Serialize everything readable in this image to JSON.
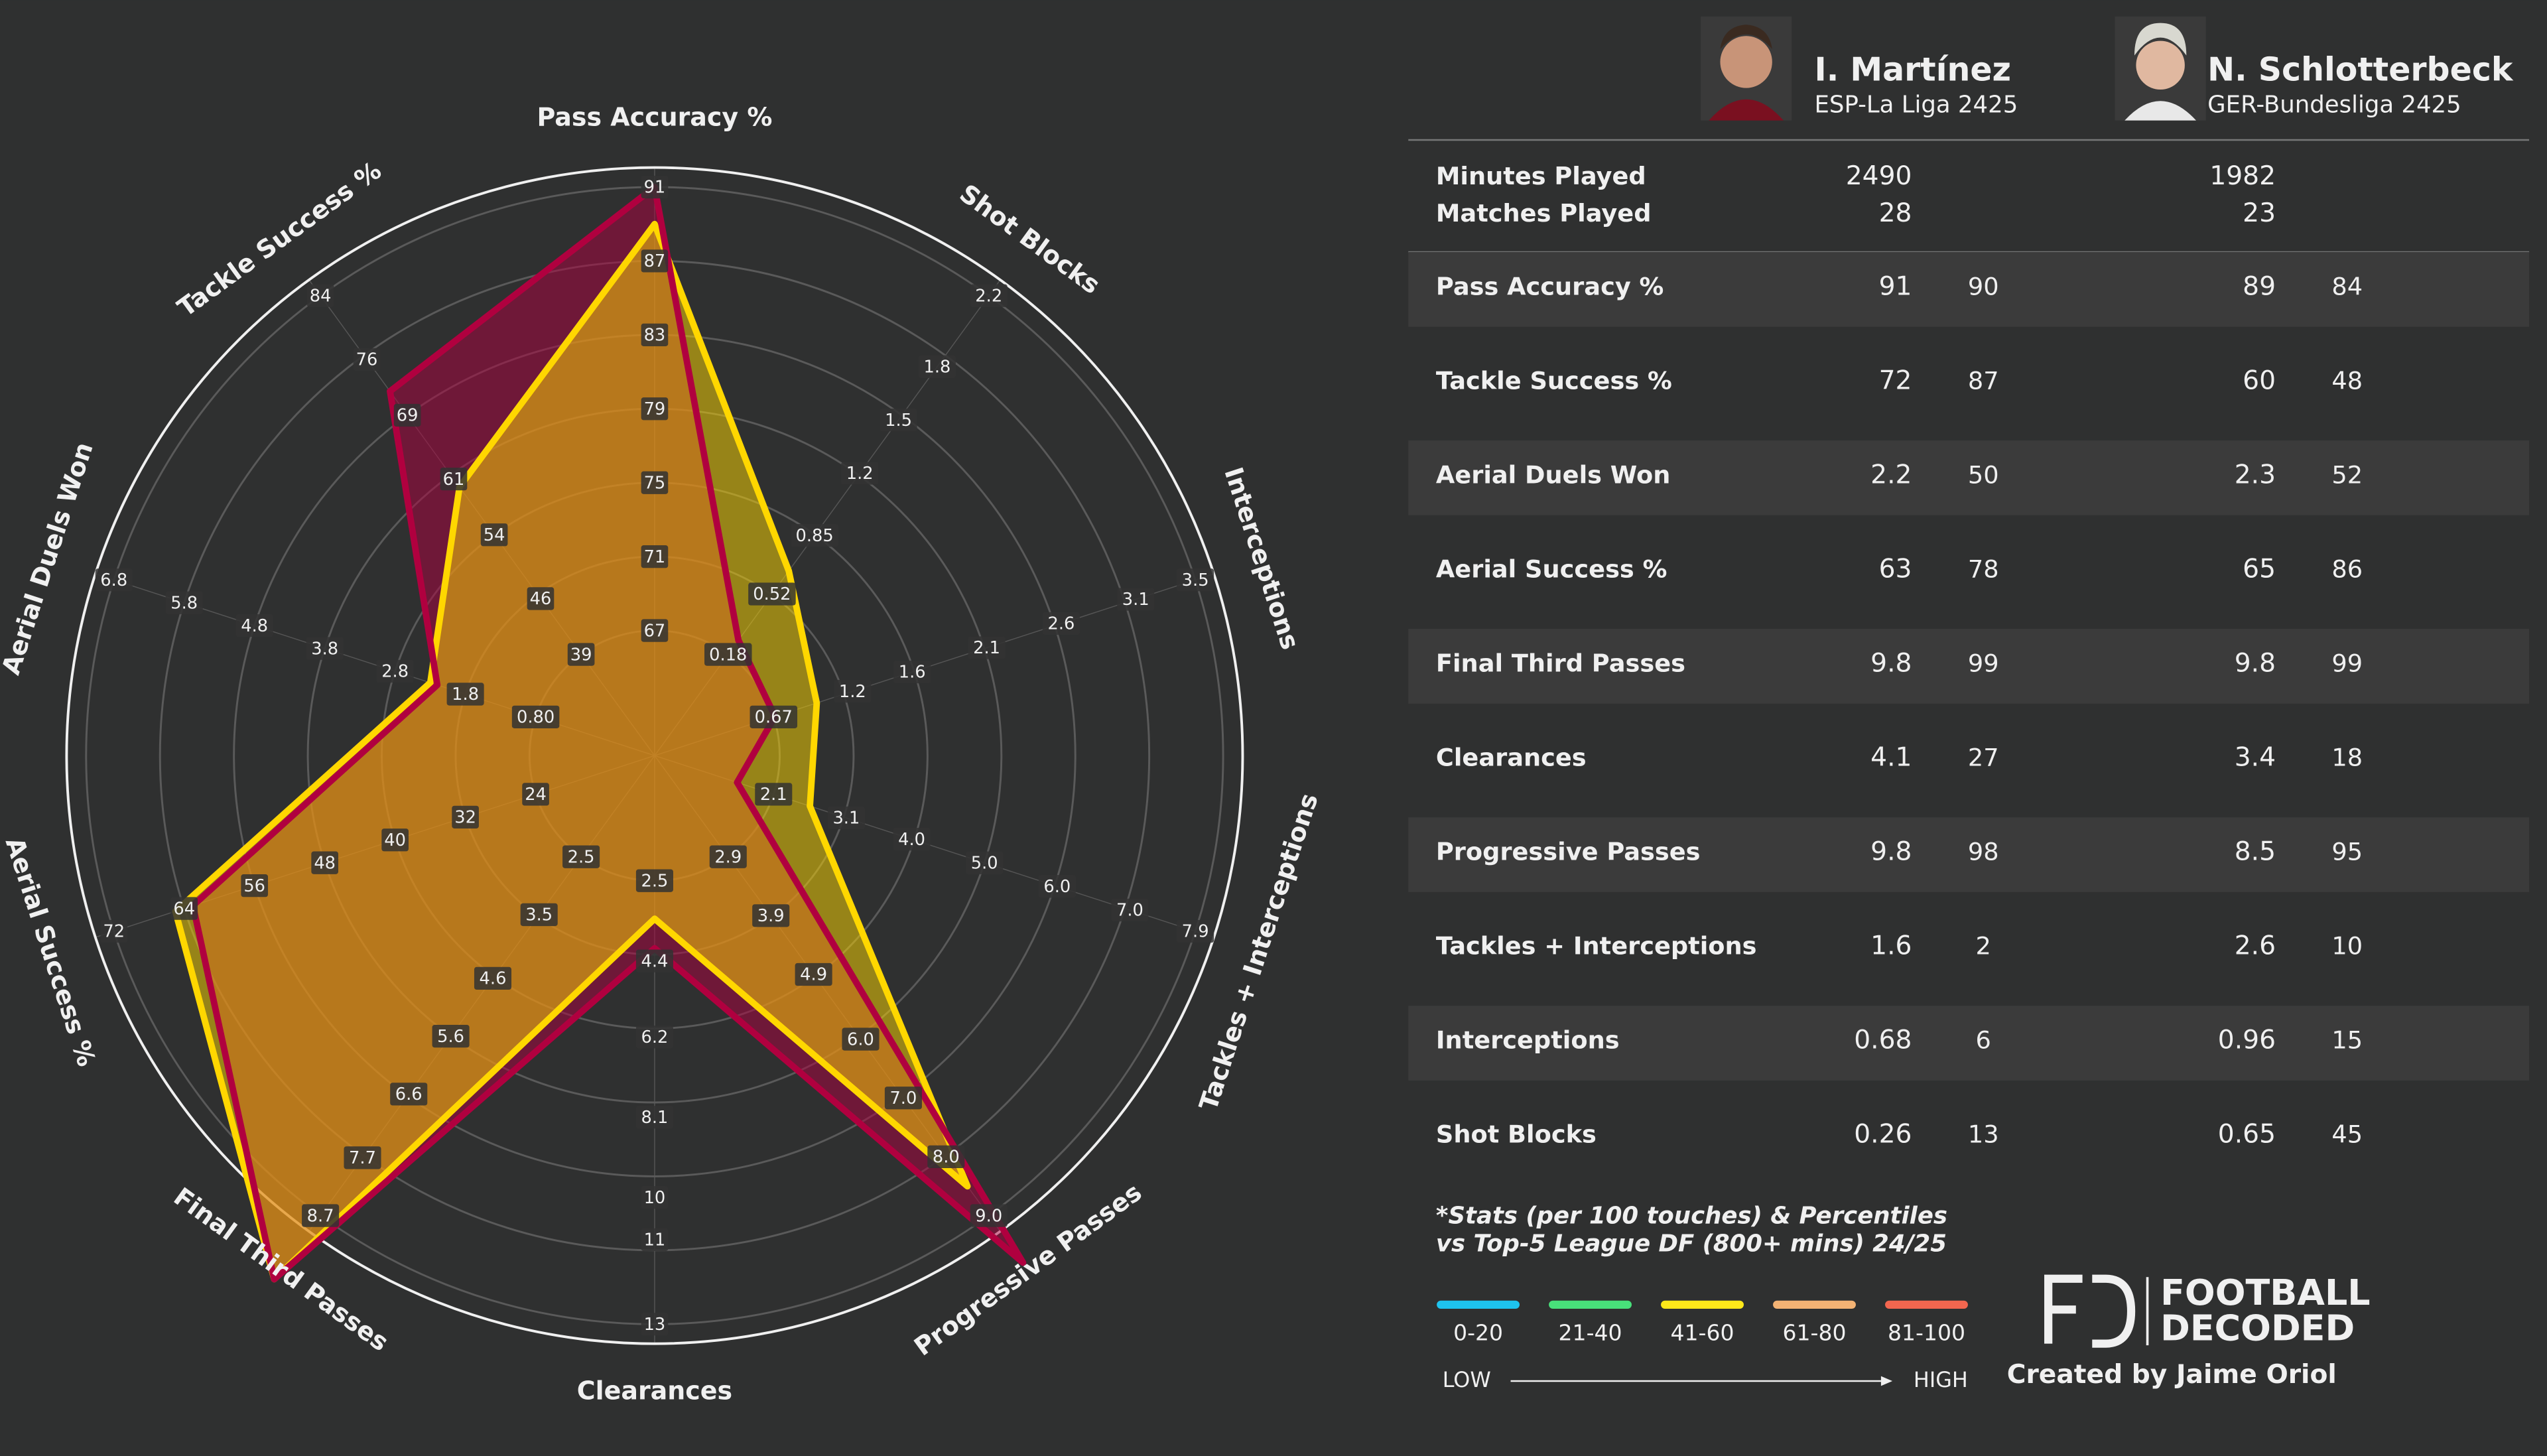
{
  "chart_data": {
    "type": "radar",
    "axes": [
      {
        "name": "Pass Accuracy %",
        "lim": [
          67,
          91
        ],
        "ticks": [
          67,
          71,
          75,
          79,
          83,
          87,
          91
        ]
      },
      {
        "name": "Shot Blocks",
        "lim": [
          0.18,
          2.2
        ],
        "ticks": [
          0.18,
          0.52,
          0.85,
          1.2,
          1.5,
          1.8,
          2.2
        ]
      },
      {
        "name": "Interceptions",
        "lim": [
          0.67,
          3.5
        ],
        "ticks": [
          0.67,
          1.2,
          1.6,
          2.1,
          2.6,
          3.1,
          3.5
        ]
      },
      {
        "name": "Tackles + Interceptions",
        "lim": [
          2.1,
          7.9
        ],
        "ticks": [
          2.1,
          3.1,
          {
            "value": 4,
            "label": "4.0"
          },
          {
            "value": 5,
            "label": "5.0"
          },
          {
            "value": 6,
            "label": "6.0"
          },
          {
            "value": 7,
            "label": "7.0"
          },
          7.9
        ]
      },
      {
        "name": "Progressive Passes",
        "lim": [
          2.9,
          9
        ],
        "ticks": [
          2.9,
          3.9,
          4.9,
          {
            "value": 6,
            "label": "6.0"
          },
          {
            "value": 7,
            "label": "7.0"
          },
          {
            "value": 8,
            "label": "8.0"
          },
          {
            "value": 9,
            "label": "9.0"
          }
        ]
      },
      {
        "name": "Clearances",
        "lim": [
          2.5,
          13
        ],
        "ticks": [
          2.5,
          4.4,
          6.2,
          8.1,
          10,
          11,
          13
        ]
      },
      {
        "name": "Final Third Passes",
        "lim": [
          2.5,
          8.7
        ],
        "ticks": [
          2.5,
          3.5,
          4.6,
          5.6,
          6.6,
          7.7,
          8.7
        ]
      },
      {
        "name": "Aerial Success %",
        "lim": [
          24,
          72
        ],
        "ticks": [
          24,
          32,
          40,
          48,
          56,
          64,
          72
        ]
      },
      {
        "name": "Aerial Duels Won",
        "lim": [
          0.8,
          6.8
        ],
        "ticks": [
          {
            "value": 0.8,
            "label": "0.80"
          },
          1.8,
          2.8,
          3.8,
          4.8,
          5.8,
          6.8
        ]
      },
      {
        "name": "Tackle Success %",
        "lim": [
          39,
          84
        ],
        "ticks": [
          39,
          46,
          54,
          61,
          69,
          76,
          84
        ]
      }
    ],
    "series": [
      {
        "name": "I. Martínez",
        "color": "#b0003f",
        "values": [
          91,
          0.26,
          0.68,
          1.6,
          9.8,
          4.1,
          9.8,
          63,
          2.2,
          72
        ]
      },
      {
        "name": "N. Schlotterbeck",
        "color": "#ffd700",
        "values": [
          89,
          0.65,
          0.96,
          2.6,
          8.5,
          3.4,
          9.8,
          65,
          2.3,
          60
        ]
      }
    ]
  },
  "players": [
    {
      "league": "ESP-La Liga 2425"
    },
    {
      "league": "GER-Bundesliga 2425"
    }
  ],
  "table": {
    "info_rows": [
      {
        "label": "Minutes Played",
        "values": [
          2490,
          1982
        ]
      },
      {
        "label": "Matches Played",
        "values": [
          28,
          23
        ]
      }
    ],
    "stat_rows": [
      {
        "label": "Pass Accuracy %",
        "values": [
          91,
          89
        ],
        "percentiles": [
          90,
          84
        ]
      },
      {
        "label": "Tackle Success %",
        "values": [
          72,
          60
        ],
        "percentiles": [
          87,
          48
        ]
      },
      {
        "label": "Aerial Duels Won",
        "values": [
          2.2,
          2.3
        ],
        "percentiles": [
          50,
          52
        ]
      },
      {
        "label": "Aerial Success %",
        "values": [
          63,
          65
        ],
        "percentiles": [
          78,
          86
        ]
      },
      {
        "label": "Final Third Passes",
        "values": [
          9.8,
          9.8
        ],
        "percentiles": [
          99,
          99
        ]
      },
      {
        "label": "Clearances",
        "values": [
          4.1,
          3.4
        ],
        "percentiles": [
          27,
          18
        ]
      },
      {
        "label": "Progressive Passes",
        "values": [
          9.8,
          8.5
        ],
        "percentiles": [
          98,
          95
        ]
      },
      {
        "label": "Tackles + Interceptions",
        "values": [
          1.6,
          2.6
        ],
        "percentiles": [
          2,
          10
        ]
      },
      {
        "label": "Interceptions",
        "values": [
          0.68,
          0.96
        ],
        "percentiles": [
          6,
          15
        ]
      },
      {
        "label": "Shot Blocks",
        "values": [
          0.26,
          0.65
        ],
        "percentiles": [
          13,
          45
        ]
      }
    ]
  },
  "footnote": [
    "*Stats (per 100 touches) & Percentiles",
    "vs Top-5 League DF (800+ mins) 24/25"
  ],
  "legend": {
    "bands": [
      {
        "label": "0-20",
        "color": "#1ec3ee"
      },
      {
        "label": "21-40",
        "color": "#48e07a"
      },
      {
        "label": "41-60",
        "color": "#ffe81a"
      },
      {
        "label": "61-80",
        "color": "#f4b374"
      },
      {
        "label": "81-100",
        "color": "#f2664f"
      }
    ],
    "low": "LOW",
    "high": "HIGH"
  },
  "branding": {
    "logo": [
      "FOOTBALL",
      "DECODED"
    ],
    "credit": "Created by Jaime Oriol"
  }
}
